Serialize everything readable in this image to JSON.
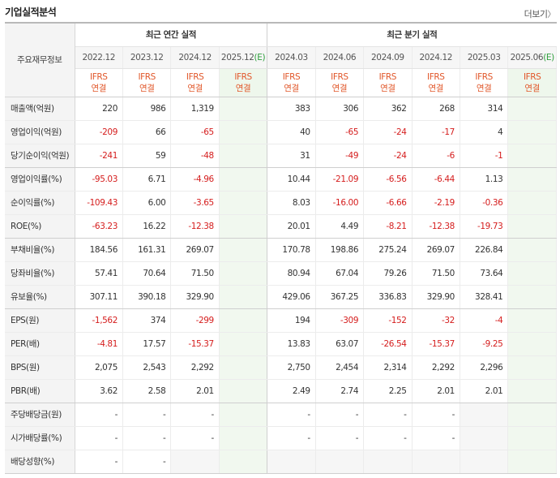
{
  "section": {
    "title": "기업실적분석",
    "more": "더보기",
    "more_icon": "chevron-right-icon"
  },
  "header": {
    "row_label": "주요재무정보",
    "annual_group": "최근 연간 실적",
    "quarter_group": "최근 분기 실적",
    "annual_periods": [
      "2022.12",
      "2023.12",
      "2024.12",
      "2025.12"
    ],
    "annual_est_suffix": "(E)",
    "quarter_periods": [
      "2024.03",
      "2024.06",
      "2024.09",
      "2024.12",
      "2025.03",
      "2025.06"
    ],
    "quarter_est_suffix": "(E)",
    "ifrs_line1": "IFRS",
    "ifrs_line2": "연결"
  },
  "colors": {
    "negative": "#d51d1d",
    "ifrs": "#e1572a",
    "estimate_bg": "#f1f8ef",
    "estimate_mark": "#2e9e3c"
  },
  "rows": [
    {
      "label": "매출액(억원)",
      "annual": [
        "220",
        "986",
        "1,319",
        ""
      ],
      "quarter": [
        "383",
        "306",
        "362",
        "268",
        "314",
        ""
      ]
    },
    {
      "label": "영업이익(억원)",
      "annual": [
        "-209",
        "66",
        "-65",
        ""
      ],
      "quarter": [
        "40",
        "-65",
        "-24",
        "-17",
        "4",
        ""
      ]
    },
    {
      "label": "당기순이익(억원)",
      "annual": [
        "-241",
        "59",
        "-48",
        ""
      ],
      "quarter": [
        "31",
        "-49",
        "-24",
        "-6",
        "-1",
        ""
      ],
      "group_end": true
    },
    {
      "label": "영업이익률(%)",
      "annual": [
        "-95.03",
        "6.71",
        "-4.96",
        ""
      ],
      "quarter": [
        "10.44",
        "-21.09",
        "-6.56",
        "-6.44",
        "1.13",
        ""
      ]
    },
    {
      "label": "순이익률(%)",
      "annual": [
        "-109.43",
        "6.00",
        "-3.65",
        ""
      ],
      "quarter": [
        "8.03",
        "-16.00",
        "-6.66",
        "-2.19",
        "-0.36",
        ""
      ]
    },
    {
      "label": "ROE(%)",
      "annual": [
        "-63.23",
        "16.22",
        "-12.38",
        ""
      ],
      "quarter": [
        "20.01",
        "4.49",
        "-8.21",
        "-12.38",
        "-19.73",
        ""
      ],
      "group_end": true
    },
    {
      "label": "부채비율(%)",
      "annual": [
        "184.56",
        "161.31",
        "269.07",
        ""
      ],
      "quarter": [
        "170.78",
        "198.86",
        "275.24",
        "269.07",
        "226.84",
        ""
      ]
    },
    {
      "label": "당좌비율(%)",
      "annual": [
        "57.41",
        "70.64",
        "71.50",
        ""
      ],
      "quarter": [
        "80.94",
        "67.04",
        "79.26",
        "71.50",
        "73.64",
        ""
      ]
    },
    {
      "label": "유보율(%)",
      "annual": [
        "307.11",
        "390.18",
        "329.90",
        ""
      ],
      "quarter": [
        "429.06",
        "367.25",
        "336.83",
        "329.90",
        "328.41",
        ""
      ],
      "group_end": true
    },
    {
      "label": "EPS(원)",
      "annual": [
        "-1,562",
        "374",
        "-299",
        ""
      ],
      "quarter": [
        "194",
        "-309",
        "-152",
        "-32",
        "-4",
        ""
      ]
    },
    {
      "label": "PER(배)",
      "annual": [
        "-4.81",
        "17.57",
        "-15.37",
        ""
      ],
      "quarter": [
        "13.83",
        "63.07",
        "-26.54",
        "-15.37",
        "-9.25",
        ""
      ]
    },
    {
      "label": "BPS(원)",
      "annual": [
        "2,075",
        "2,543",
        "2,292",
        ""
      ],
      "quarter": [
        "2,750",
        "2,454",
        "2,314",
        "2,292",
        "2,296",
        ""
      ]
    },
    {
      "label": "PBR(배)",
      "annual": [
        "3.62",
        "2.58",
        "2.01",
        ""
      ],
      "quarter": [
        "2.49",
        "2.74",
        "2.25",
        "2.01",
        "2.01",
        ""
      ],
      "group_end": true
    },
    {
      "label": "주당배당금(원)",
      "annual": [
        "-",
        "-",
        "-",
        ""
      ],
      "quarter": [
        "-",
        "-",
        "-",
        "-",
        "",
        ""
      ]
    },
    {
      "label": "시가배당률(%)",
      "annual": [
        "-",
        "-",
        "-",
        ""
      ],
      "quarter": [
        "-",
        "-",
        "-",
        "-",
        "",
        ""
      ]
    },
    {
      "label": "배당성향(%)",
      "annual": [
        "-",
        "-",
        "",
        ""
      ],
      "quarter": [
        "",
        "",
        "",
        "",
        "",
        ""
      ],
      "last": true
    }
  ]
}
